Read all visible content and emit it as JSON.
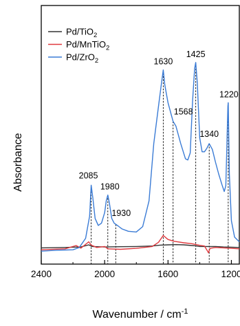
{
  "chart_data": {
    "type": "line",
    "title": "",
    "xlabel": "Wavenumber / cm⁻¹",
    "ylabel": "Absorbance",
    "x_reversed": true,
    "xlim": [
      2400,
      1150
    ],
    "ylim": [
      0,
      1
    ],
    "x_ticks": [
      2400,
      2000,
      1600,
      1200
    ],
    "y_ticks_shown": false,
    "grid": false,
    "legend": {
      "position": "top-left",
      "entries": [
        {
          "label": "Pd/TiO₂",
          "color": "#333333"
        },
        {
          "label": "Pd/MnTiO₂",
          "color": "#e0393e"
        },
        {
          "label": "Pd/ZrO₂",
          "color": "#3a7bd5"
        }
      ]
    },
    "series": [
      {
        "name": "Pd/TiO₂",
        "color": "#333333",
        "points": [
          [
            2400,
            0.034
          ],
          [
            2250,
            0.036
          ],
          [
            2150,
            0.038
          ],
          [
            2100,
            0.047
          ],
          [
            2080,
            0.04
          ],
          [
            2000,
            0.038
          ],
          [
            1900,
            0.039
          ],
          [
            1800,
            0.04
          ],
          [
            1700,
            0.042
          ],
          [
            1650,
            0.046
          ],
          [
            1600,
            0.047
          ],
          [
            1550,
            0.048
          ],
          [
            1500,
            0.047
          ],
          [
            1450,
            0.044
          ],
          [
            1425,
            0.043
          ],
          [
            1400,
            0.04
          ],
          [
            1350,
            0.04
          ],
          [
            1300,
            0.04
          ],
          [
            1250,
            0.038
          ],
          [
            1200,
            0.037
          ],
          [
            1150,
            0.036
          ]
        ]
      },
      {
        "name": "Pd/MnTiO₂",
        "color": "#e0393e",
        "points": [
          [
            2400,
            0.026
          ],
          [
            2250,
            0.03
          ],
          [
            2180,
            0.044
          ],
          [
            2150,
            0.033
          ],
          [
            2100,
            0.06
          ],
          [
            2085,
            0.046
          ],
          [
            2050,
            0.036
          ],
          [
            2000,
            0.04
          ],
          [
            1980,
            0.03
          ],
          [
            1900,
            0.028
          ],
          [
            1800,
            0.032
          ],
          [
            1700,
            0.04
          ],
          [
            1660,
            0.058
          ],
          [
            1630,
            0.087
          ],
          [
            1600,
            0.07
          ],
          [
            1560,
            0.062
          ],
          [
            1500,
            0.056
          ],
          [
            1450,
            0.052
          ],
          [
            1400,
            0.045
          ],
          [
            1370,
            0.042
          ],
          [
            1350,
            0.02
          ],
          [
            1345,
            0.013
          ],
          [
            1335,
            0.032
          ],
          [
            1300,
            0.036
          ],
          [
            1250,
            0.034
          ],
          [
            1200,
            0.032
          ],
          [
            1150,
            0.03
          ]
        ]
      },
      {
        "name": "Pd/ZrO₂",
        "color": "#3a7bd5",
        "points": [
          [
            2400,
            0.02
          ],
          [
            2300,
            0.024
          ],
          [
            2250,
            0.025
          ],
          [
            2200,
            0.026
          ],
          [
            2160,
            0.036
          ],
          [
            2120,
            0.075
          ],
          [
            2095,
            0.17
          ],
          [
            2085,
            0.302
          ],
          [
            2075,
            0.25
          ],
          [
            2060,
            0.16
          ],
          [
            2040,
            0.13
          ],
          [
            2020,
            0.14
          ],
          [
            2000,
            0.185
          ],
          [
            1990,
            0.235
          ],
          [
            1980,
            0.26
          ],
          [
            1970,
            0.225
          ],
          [
            1955,
            0.16
          ],
          [
            1940,
            0.14
          ],
          [
            1930,
            0.135
          ],
          [
            1915,
            0.128
          ],
          [
            1890,
            0.115
          ],
          [
            1850,
            0.105
          ],
          [
            1800,
            0.102
          ],
          [
            1760,
            0.125
          ],
          [
            1720,
            0.235
          ],
          [
            1690,
            0.48
          ],
          [
            1660,
            0.64
          ],
          [
            1645,
            0.72
          ],
          [
            1630,
            0.795
          ],
          [
            1620,
            0.73
          ],
          [
            1600,
            0.655
          ],
          [
            1580,
            0.605
          ],
          [
            1568,
            0.575
          ],
          [
            1550,
            0.555
          ],
          [
            1520,
            0.48
          ],
          [
            1490,
            0.415
          ],
          [
            1475,
            0.41
          ],
          [
            1460,
            0.44
          ],
          [
            1445,
            0.66
          ],
          [
            1432,
            0.8
          ],
          [
            1425,
            0.827
          ],
          [
            1415,
            0.74
          ],
          [
            1400,
            0.505
          ],
          [
            1385,
            0.445
          ],
          [
            1370,
            0.445
          ],
          [
            1355,
            0.46
          ],
          [
            1340,
            0.48
          ],
          [
            1320,
            0.455
          ],
          [
            1300,
            0.4
          ],
          [
            1280,
            0.35
          ],
          [
            1260,
            0.305
          ],
          [
            1245,
            0.275
          ],
          [
            1235,
            0.3
          ],
          [
            1228,
            0.48
          ],
          [
            1222,
            0.64
          ],
          [
            1220,
            0.655
          ],
          [
            1213,
            0.35
          ],
          [
            1200,
            0.15
          ],
          [
            1180,
            0.08
          ],
          [
            1150,
            0.06
          ]
        ]
      }
    ],
    "annotations": [
      {
        "text": "2085",
        "x": 2085
      },
      {
        "text": "1980",
        "x": 1980
      },
      {
        "text": "1930",
        "x": 1930
      },
      {
        "text": "1630",
        "x": 1630
      },
      {
        "text": "1568",
        "x": 1568
      },
      {
        "text": "1425",
        "x": 1425
      },
      {
        "text": "1340",
        "x": 1340
      },
      {
        "text": "1220",
        "x": 1220
      }
    ]
  }
}
